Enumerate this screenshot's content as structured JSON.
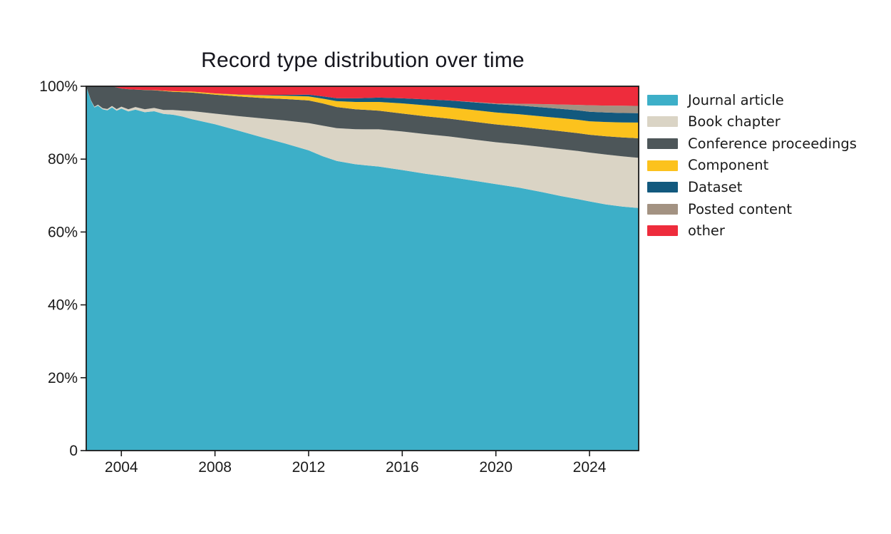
{
  "title": "Record type distribution over time",
  "chart_data": {
    "type": "area",
    "stacked": true,
    "normalized": "percent",
    "title": "Record type distribution over time",
    "xlabel": "",
    "ylabel": "",
    "xlim": [
      2002.5,
      2026.1
    ],
    "ylim": [
      0,
      100
    ],
    "grid": false,
    "legend_position": "right-outside",
    "xticks": [
      "2004",
      "2008",
      "2012",
      "2016",
      "2020",
      "2024"
    ],
    "xtick_values": [
      2004,
      2008,
      2012,
      2016,
      2020,
      2024
    ],
    "yticks": [
      "100%",
      "80%",
      "60%",
      "40%",
      "20%",
      "0"
    ],
    "ytick_values": [
      100,
      80,
      60,
      40,
      20,
      0
    ],
    "x": [
      2002.5,
      2002.7,
      2002.85,
      2003.0,
      2003.2,
      2003.4,
      2003.6,
      2003.8,
      2004.0,
      2004.3,
      2004.6,
      2005.0,
      2005.4,
      2005.8,
      2006.2,
      2006.6,
      2007.0,
      2008.0,
      2009.0,
      2010.0,
      2011.0,
      2012.0,
      2012.6,
      2013.2,
      2014.0,
      2015.0,
      2016.0,
      2017.0,
      2018.0,
      2019.0,
      2020.0,
      2021.0,
      2022.0,
      2022.8,
      2023.5,
      2024.0,
      2024.7,
      2025.4,
      2026.1
    ],
    "value_unit": "% of records",
    "series": [
      {
        "name": "Journal article",
        "color": "#3DAFC8",
        "values": [
          99.8,
          96.0,
          94.2,
          94.7,
          93.7,
          93.4,
          94.2,
          93.2,
          93.9,
          93.1,
          93.6,
          92.9,
          93.2,
          92.4,
          92.2,
          91.7,
          91.0,
          89.5,
          87.8,
          86.0,
          84.3,
          82.4,
          80.8,
          79.6,
          78.6,
          77.8,
          77.0,
          76.1,
          75.2,
          74.3,
          73.3,
          72.3,
          71.0,
          69.8,
          69.0,
          68.4,
          67.5,
          67.0,
          66.8
        ]
      },
      {
        "name": "Book chapter",
        "color": "#DAD4C5",
        "values": [
          0.1,
          0.15,
          0.2,
          0.25,
          0.3,
          0.35,
          0.4,
          0.45,
          0.5,
          0.6,
          0.7,
          0.8,
          0.9,
          1.1,
          1.3,
          1.6,
          2.2,
          2.9,
          4.0,
          5.2,
          6.3,
          7.5,
          8.4,
          9.0,
          9.6,
          10.2,
          10.6,
          10.9,
          11.1,
          11.3,
          11.5,
          11.9,
          12.4,
          12.9,
          13.2,
          13.4,
          13.7,
          13.8,
          13.8
        ]
      },
      {
        "name": "Conference proceedings",
        "color": "#4D5659",
        "values": [
          0.1,
          3.85,
          5.6,
          5.05,
          6.0,
          6.25,
          5.4,
          5.95,
          5.0,
          5.5,
          4.8,
          5.3,
          4.85,
          5.2,
          5.0,
          5.1,
          5.1,
          5.2,
          5.4,
          5.6,
          5.9,
          6.2,
          6.1,
          5.8,
          5.5,
          5.1,
          4.9,
          4.9,
          4.9,
          4.9,
          4.9,
          4.9,
          4.9,
          4.9,
          4.9,
          4.9,
          5.0,
          5.2,
          5.4
        ]
      },
      {
        "name": "Component",
        "color": "#FCC21D",
        "values": [
          0,
          0,
          0,
          0,
          0,
          0,
          0,
          0,
          0,
          0,
          0,
          0.02,
          0.05,
          0.1,
          0.15,
          0.2,
          0.25,
          0.35,
          0.5,
          0.7,
          0.9,
          1.1,
          1.3,
          1.6,
          2.0,
          2.4,
          2.8,
          3.0,
          3.1,
          3.2,
          3.3,
          3.4,
          3.5,
          3.6,
          3.65,
          3.7,
          3.9,
          4.1,
          4.3
        ]
      },
      {
        "name": "Dataset",
        "color": "#12597E",
        "values": [
          0,
          0,
          0,
          0,
          0,
          0,
          0,
          0,
          0,
          0,
          0,
          0,
          0,
          0,
          0,
          0,
          0,
          0,
          0.05,
          0.1,
          0.25,
          0.5,
          0.65,
          0.8,
          1.0,
          1.2,
          1.4,
          1.65,
          1.9,
          2.1,
          2.3,
          2.4,
          2.5,
          2.55,
          2.6,
          2.6,
          2.6,
          2.6,
          2.6
        ]
      },
      {
        "name": "Posted content",
        "color": "#A39282",
        "values": [
          0,
          0,
          0,
          0,
          0,
          0,
          0,
          0,
          0,
          0,
          0,
          0,
          0,
          0,
          0,
          0,
          0,
          0,
          0,
          0,
          0,
          0,
          0,
          0,
          0,
          0,
          0,
          0,
          0,
          0.1,
          0.2,
          0.5,
          0.9,
          1.2,
          1.5,
          1.8,
          1.9,
          2.0,
          2.0
        ]
      },
      {
        "name": "other",
        "color": "#EE2C3C",
        "values": [
          0,
          0,
          0,
          0,
          0,
          0,
          0,
          0.3,
          0.6,
          0.8,
          0.9,
          1.0,
          1.05,
          1.2,
          1.35,
          1.4,
          1.45,
          1.95,
          2.25,
          2.4,
          2.35,
          2.3,
          2.75,
          3.3,
          3.3,
          3.1,
          3.3,
          3.6,
          3.9,
          4.3,
          4.7,
          4.8,
          4.9,
          5.0,
          5.1,
          5.2,
          5.3,
          5.35,
          5.4
        ]
      }
    ],
    "colors": {
      "axis": "#1a1a1a",
      "tick_label": "#1a1a1a",
      "background": "#ffffff"
    }
  }
}
